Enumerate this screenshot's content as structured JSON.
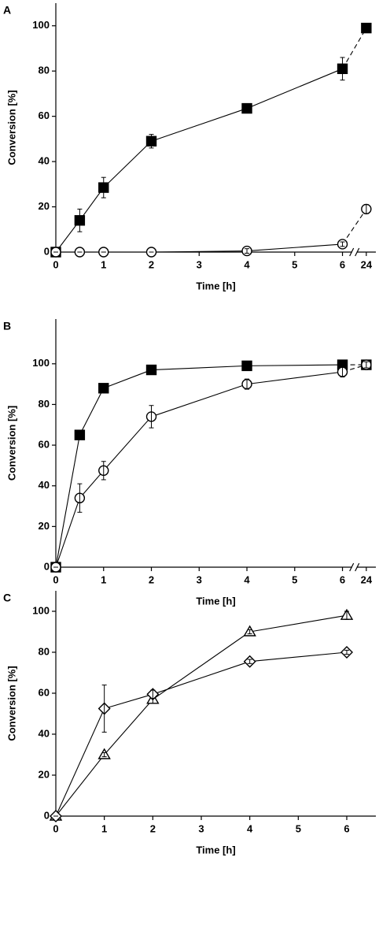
{
  "chart_data": [
    {
      "type": "line",
      "title": "A",
      "xlabel": "Time [h]",
      "ylabel": "Conversion [%]",
      "x": [
        0,
        0.5,
        1,
        2,
        4,
        6,
        24
      ],
      "xlim": [
        0,
        24.2
      ],
      "x_break": [
        6.2,
        23.8
      ],
      "xticks": [
        0,
        1,
        2,
        3,
        4,
        5,
        6,
        24
      ],
      "ylim": [
        0,
        110
      ],
      "yticks": [
        0,
        20,
        40,
        60,
        80,
        100
      ],
      "series": [
        {
          "marker": "square",
          "filled": true,
          "color": "#000000",
          "values": [
            0,
            14,
            28.5,
            49,
            63.5,
            81,
            99
          ],
          "errors": [
            0,
            5,
            4.5,
            3,
            1,
            5,
            1
          ]
        },
        {
          "marker": "circle",
          "filled": false,
          "color": "#000000",
          "values": [
            0,
            0,
            0,
            0,
            0.5,
            3.5,
            19
          ],
          "errors": [
            0,
            0,
            0,
            0,
            1,
            1,
            2
          ]
        }
      ]
    },
    {
      "type": "line",
      "title": "B",
      "xlabel": "Time [h]",
      "ylabel": "Conversion [%]",
      "x": [
        0,
        0.5,
        1,
        2,
        4,
        6,
        24
      ],
      "xlim": [
        0,
        24.2
      ],
      "x_break": [
        6.2,
        23.8
      ],
      "xticks": [
        0,
        1,
        2,
        3,
        4,
        5,
        6,
        24
      ],
      "ylim": [
        0,
        122
      ],
      "yticks": [
        0,
        20,
        40,
        60,
        80,
        100
      ],
      "series": [
        {
          "marker": "square",
          "filled": true,
          "color": "#000000",
          "values": [
            0,
            65,
            88,
            97,
            99,
            99.5,
            99.5
          ],
          "errors": [
            0,
            2,
            2,
            1,
            1,
            1,
            1
          ]
        },
        {
          "marker": "circle",
          "filled": false,
          "color": "#000000",
          "values": [
            0,
            34,
            47.5,
            74,
            90,
            96,
            99.5
          ],
          "errors": [
            0,
            7,
            4.5,
            5.5,
            2.5,
            2.5,
            1.5
          ]
        }
      ]
    },
    {
      "type": "line",
      "title": "C",
      "xlabel": "Time [h]",
      "ylabel": "Conversion [%]",
      "x": [
        0,
        1,
        2,
        4,
        6
      ],
      "xlim": [
        0,
        6.6
      ],
      "xticks": [
        0,
        1,
        2,
        3,
        4,
        5,
        6
      ],
      "ylim": [
        0,
        110
      ],
      "yticks": [
        0,
        20,
        40,
        60,
        80,
        100
      ],
      "series": [
        {
          "marker": "triangle",
          "filled": false,
          "color": "#000000",
          "values": [
            0,
            30,
            57,
            90,
            98
          ],
          "errors": [
            0,
            1,
            2,
            1,
            2
          ]
        },
        {
          "marker": "diamond",
          "filled": false,
          "color": "#000000",
          "values": [
            0,
            52.5,
            59.5,
            75.5,
            80
          ],
          "errors": [
            0,
            11.5,
            2,
            1,
            1
          ]
        }
      ]
    }
  ]
}
